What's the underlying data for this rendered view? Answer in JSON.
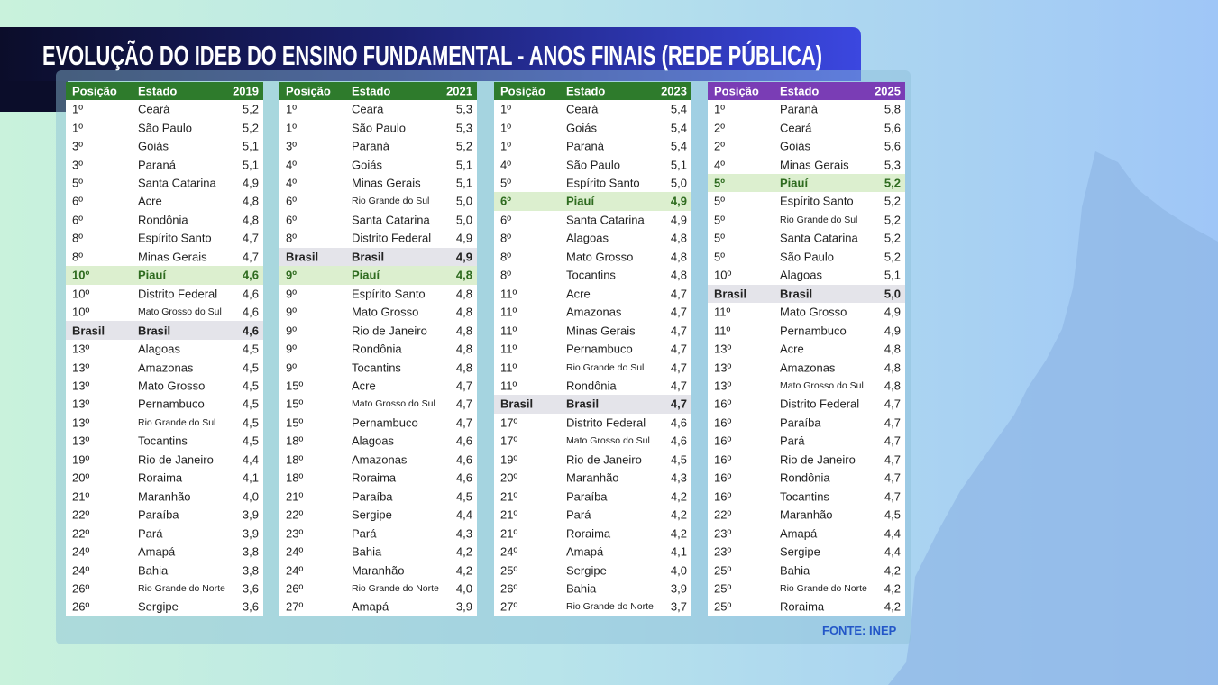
{
  "title": "EVOLUÇÃO DO IDEB DO ENSINO FUNDAMENTAL - ANOS FINAIS (REDE PÚBLICA)",
  "source": "FONTE: INEP",
  "tables": [
    {
      "header": [
        "Posição",
        "Estado",
        "2019"
      ],
      "header_color": "#2e7b2c",
      "highlight": {
        "row": 9,
        "color": "#dcefcf",
        "text_color": "#2e6b1f"
      },
      "national_color": "#e4e4ea",
      "rows": [
        [
          "1º",
          "Ceará",
          "5,2"
        ],
        [
          "1º",
          "São Paulo",
          "5,2"
        ],
        [
          "3º",
          "Goiás",
          "5,1"
        ],
        [
          "3º",
          "Paraná",
          "5,1"
        ],
        [
          "5º",
          "Santa Catarina",
          "4,9"
        ],
        [
          "6º",
          "Acre",
          "4,8"
        ],
        [
          "6º",
          "Rondônia",
          "4,8"
        ],
        [
          "8º",
          "Espírito Santo",
          "4,7"
        ],
        [
          "8º",
          "Minas Gerais",
          "4,7"
        ],
        [
          "10º",
          "Piauí",
          "4,6"
        ],
        [
          "10º",
          "Distrito Federal",
          "4,6"
        ],
        [
          "10º",
          "Mato Grosso do Sul",
          "4,6"
        ],
        [
          "Brasil",
          "Brasil",
          "4,6"
        ],
        [
          "13º",
          "Alagoas",
          "4,5"
        ],
        [
          "13º",
          "Amazonas",
          "4,5"
        ],
        [
          "13º",
          "Mato Grosso",
          "4,5"
        ],
        [
          "13º",
          "Pernambuco",
          "4,5"
        ],
        [
          "13º",
          "Rio Grande do Sul",
          "4,5"
        ],
        [
          "13º",
          "Tocantins",
          "4,5"
        ],
        [
          "19º",
          "Rio de Janeiro",
          "4,4"
        ],
        [
          "20º",
          "Roraima",
          "4,1"
        ],
        [
          "21º",
          "Maranhão",
          "4,0"
        ],
        [
          "22º",
          "Paraíba",
          "3,9"
        ],
        [
          "22º",
          "Pará",
          "3,9"
        ],
        [
          "24º",
          "Amapá",
          "3,8"
        ],
        [
          "24º",
          "Bahia",
          "3,8"
        ],
        [
          "26º",
          "Rio Grande do Norte",
          "3,6"
        ],
        [
          "26º",
          "Sergipe",
          "3,6"
        ]
      ]
    },
    {
      "header": [
        "Posição",
        "Estado",
        "2021"
      ],
      "header_color": "#2e7b2c",
      "highlight": {
        "row": 9,
        "color": "#dcefcf",
        "text_color": "#2e6b1f"
      },
      "national_color": "#e4e4ea",
      "rows": [
        [
          "1º",
          "Ceará",
          "5,3"
        ],
        [
          "1º",
          "São Paulo",
          "5,3"
        ],
        [
          "3º",
          "Paraná",
          "5,2"
        ],
        [
          "4º",
          "Goiás",
          "5,1"
        ],
        [
          "4º",
          "Minas Gerais",
          "5,1"
        ],
        [
          "6º",
          "Rio Grande do Sul",
          "5,0"
        ],
        [
          "6º",
          "Santa Catarina",
          "5,0"
        ],
        [
          "8º",
          "Distrito Federal",
          "4,9"
        ],
        [
          "Brasil",
          "Brasil",
          "4,9"
        ],
        [
          "9º",
          "Piauí",
          "4,8"
        ],
        [
          "9º",
          "Espírito Santo",
          "4,8"
        ],
        [
          "9º",
          "Mato Grosso",
          "4,8"
        ],
        [
          "9º",
          "Rio de Janeiro",
          "4,8"
        ],
        [
          "9º",
          "Rondônia",
          "4,8"
        ],
        [
          "9º",
          "Tocantins",
          "4,8"
        ],
        [
          "15º",
          "Acre",
          "4,7"
        ],
        [
          "15º",
          "Mato Grosso do Sul",
          "4,7"
        ],
        [
          "15º",
          "Pernambuco",
          "4,7"
        ],
        [
          "18º",
          "Alagoas",
          "4,6"
        ],
        [
          "18º",
          "Amazonas",
          "4,6"
        ],
        [
          "18º",
          "Roraima",
          "4,6"
        ],
        [
          "21º",
          "Paraíba",
          "4,5"
        ],
        [
          "22º",
          "Sergipe",
          "4,4"
        ],
        [
          "23º",
          "Pará",
          "4,3"
        ],
        [
          "24º",
          "Bahia",
          "4,2"
        ],
        [
          "24º",
          "Maranhão",
          "4,2"
        ],
        [
          "26º",
          "Rio Grande do Norte",
          "4,0"
        ],
        [
          "27º",
          "Amapá",
          "3,9"
        ]
      ]
    },
    {
      "header": [
        "Posição",
        "Estado",
        "2023"
      ],
      "header_color": "#2e7b2c",
      "highlight": {
        "row": 5,
        "color": "#dcefcf",
        "text_color": "#2e6b1f"
      },
      "national_color": "#e4e4ea",
      "rows": [
        [
          "1º",
          "Ceará",
          "5,4"
        ],
        [
          "1º",
          "Goiás",
          "5,4"
        ],
        [
          "1º",
          "Paraná",
          "5,4"
        ],
        [
          "4º",
          "São Paulo",
          "5,1"
        ],
        [
          "5º",
          "Espírito Santo",
          "5,0"
        ],
        [
          "6º",
          "Piauí",
          "4,9"
        ],
        [
          "6º",
          "Santa Catarina",
          "4,9"
        ],
        [
          "8º",
          "Alagoas",
          "4,8"
        ],
        [
          "8º",
          "Mato Grosso",
          "4,8"
        ],
        [
          "8º",
          "Tocantins",
          "4,8"
        ],
        [
          "11º",
          "Acre",
          "4,7"
        ],
        [
          "11º",
          "Amazonas",
          "4,7"
        ],
        [
          "11º",
          "Minas Gerais",
          "4,7"
        ],
        [
          "11º",
          "Pernambuco",
          "4,7"
        ],
        [
          "11º",
          "Rio Grande do Sul",
          "4,7"
        ],
        [
          "11º",
          "Rondônia",
          "4,7"
        ],
        [
          "Brasil",
          "Brasil",
          "4,7"
        ],
        [
          "17º",
          "Distrito Federal",
          "4,6"
        ],
        [
          "17º",
          "Mato Grosso do Sul",
          "4,6"
        ],
        [
          "19º",
          "Rio de Janeiro",
          "4,5"
        ],
        [
          "20º",
          "Maranhão",
          "4,3"
        ],
        [
          "21º",
          "Paraíba",
          "4,2"
        ],
        [
          "21º",
          "Pará",
          "4,2"
        ],
        [
          "21º",
          "Roraima",
          "4,2"
        ],
        [
          "24º",
          "Amapá",
          "4,1"
        ],
        [
          "25º",
          "Sergipe",
          "4,0"
        ],
        [
          "26º",
          "Bahia",
          "3,9"
        ],
        [
          "27º",
          "Rio Grande do Norte",
          "3,7"
        ]
      ]
    },
    {
      "header": [
        "Posição",
        "Estado",
        "2025"
      ],
      "header_color": "#7a3db5",
      "highlight": {
        "row": 4,
        "color": "#dcefcf",
        "text_color": "#2e6b1f"
      },
      "national_color": "#e4e4ea",
      "rows": [
        [
          "1º",
          "Paraná",
          "5,8"
        ],
        [
          "2º",
          "Ceará",
          "5,6"
        ],
        [
          "2º",
          "Goiás",
          "5,6"
        ],
        [
          "4º",
          "Minas Gerais",
          "5,3"
        ],
        [
          "5º",
          "Piauí",
          "5,2"
        ],
        [
          "5º",
          "Espírito Santo",
          "5,2"
        ],
        [
          "5º",
          "Rio Grande do Sul",
          "5,2"
        ],
        [
          "5º",
          "Santa Catarina",
          "5,2"
        ],
        [
          "5º",
          "São Paulo",
          "5,2"
        ],
        [
          "10º",
          "Alagoas",
          "5,1"
        ],
        [
          "Brasil",
          "Brasil",
          "5,0"
        ],
        [
          "11º",
          "Mato Grosso",
          "4,9"
        ],
        [
          "11º",
          "Pernambuco",
          "4,9"
        ],
        [
          "13º",
          "Acre",
          "4,8"
        ],
        [
          "13º",
          "Amazonas",
          "4,8"
        ],
        [
          "13º",
          "Mato Grosso do Sul",
          "4,8"
        ],
        [
          "16º",
          "Distrito Federal",
          "4,7"
        ],
        [
          "16º",
          "Paraíba",
          "4,7"
        ],
        [
          "16º",
          "Pará",
          "4,7"
        ],
        [
          "16º",
          "Rio de Janeiro",
          "4,7"
        ],
        [
          "16º",
          "Rondônia",
          "4,7"
        ],
        [
          "16º",
          "Tocantins",
          "4,7"
        ],
        [
          "22º",
          "Maranhão",
          "4,5"
        ],
        [
          "23º",
          "Amapá",
          "4,4"
        ],
        [
          "23º",
          "Sergipe",
          "4,4"
        ],
        [
          "25º",
          "Bahia",
          "4,2"
        ],
        [
          "25º",
          "Rio Grande do Norte",
          "4,2"
        ],
        [
          "25º",
          "Roraima",
          "4,2"
        ]
      ]
    }
  ]
}
